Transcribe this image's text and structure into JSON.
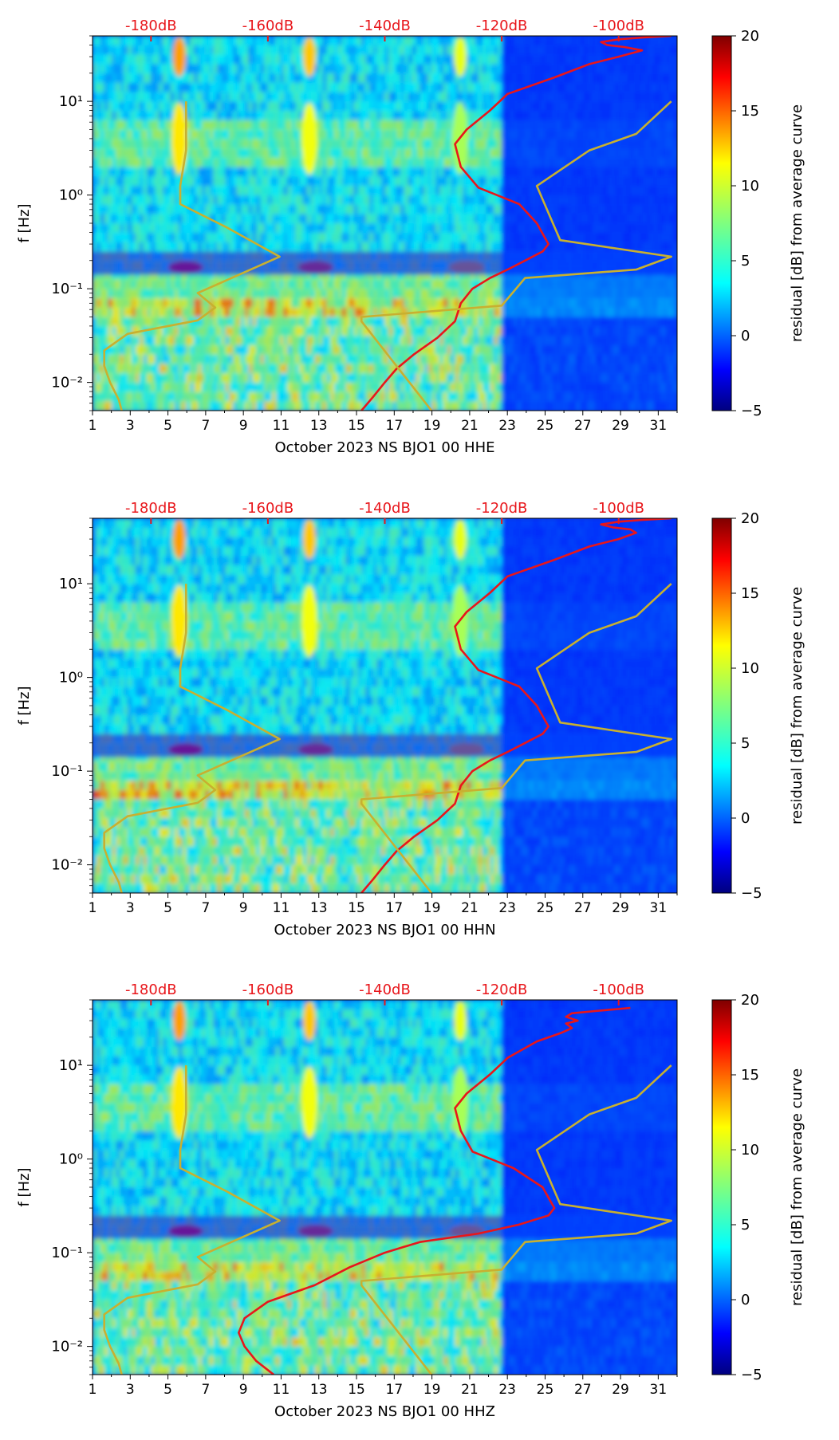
{
  "colors": {
    "spectrogram_base": "#0a2fd6",
    "db_curve": "#e8161b",
    "db_label": "#e8161b",
    "nlnm_nhnm_curves": "#c8b030",
    "axis": "#000000"
  },
  "colormap": "jet",
  "colorbar": {
    "label": "residual [dB] from average curve",
    "range": [
      -5,
      20
    ],
    "ticks": [
      "20",
      "15",
      "10",
      "5",
      "0",
      "−5"
    ]
  },
  "chart_data": [
    {
      "type": "heatmap",
      "title": "",
      "xlabel": "October 2023 NS BJO1 00 HHE",
      "ylabel": "f [Hz]",
      "y_scale": "log",
      "xlim": [
        1,
        32
      ],
      "ylim": [
        0.005,
        50
      ],
      "x_ticks": [
        "1",
        "3",
        "5",
        "7",
        "9",
        "11",
        "13",
        "15",
        "17",
        "19",
        "21",
        "23",
        "25",
        "27",
        "29",
        "31"
      ],
      "y_ticks": [
        "10⁻²",
        "10⁻¹",
        "10⁰",
        "10¹"
      ],
      "top_ticks": [
        "-180dB",
        "-160dB",
        "-140dB",
        "-120dB",
        "-100dB"
      ],
      "top_range_db": [
        -190,
        -90
      ],
      "series": [
        {
          "color": "red",
          "x_db": [
            -144,
            -142,
            -140,
            -138,
            -135,
            -131,
            -128,
            -127,
            -125,
            -122,
            -119,
            -116,
            -113,
            -112,
            -114,
            -117,
            -124,
            -127,
            -128,
            -126,
            -122,
            -119,
            -111,
            -105,
            -100,
            -96,
            -99,
            -102,
            -103,
            -100,
            -96,
            -91
          ],
          "f": [
            0.005,
            0.007,
            0.01,
            0.014,
            0.02,
            0.03,
            0.045,
            0.07,
            0.1,
            0.13,
            0.16,
            0.2,
            0.25,
            0.3,
            0.5,
            0.8,
            1.2,
            2,
            3.5,
            5,
            8,
            12,
            18,
            25,
            30,
            35,
            38,
            40,
            43,
            46,
            48,
            50
          ]
        },
        {
          "color": "olive",
          "x_db": [
            -185,
            -185.5,
            -187,
            -188,
            -188,
            -184,
            -172,
            -169,
            -172,
            -158,
            -167,
            -175,
            -175,
            -174,
            -174
          ],
          "f": [
            0.005,
            0.0065,
            0.01,
            0.015,
            0.022,
            0.033,
            0.046,
            0.063,
            0.09,
            0.22,
            0.45,
            0.8,
            1.25,
            3,
            10
          ]
        },
        {
          "color": "olive",
          "x_db": [
            -132,
            -144,
            -144,
            -120,
            -116,
            -97,
            -91,
            -110,
            -114,
            -105,
            -97,
            -91
          ],
          "f": [
            0.005,
            0.045,
            0.05,
            0.066,
            0.13,
            0.16,
            0.22,
            0.33,
            1.25,
            3,
            4.5,
            10
          ]
        }
      ]
    },
    {
      "type": "heatmap",
      "title": "",
      "xlabel": "October 2023 NS BJO1 00 HHN",
      "ylabel": "f [Hz]",
      "y_scale": "log",
      "xlim": [
        1,
        32
      ],
      "ylim": [
        0.005,
        50
      ],
      "x_ticks": [
        "1",
        "3",
        "5",
        "7",
        "9",
        "11",
        "13",
        "15",
        "17",
        "19",
        "21",
        "23",
        "25",
        "27",
        "29",
        "31"
      ],
      "y_ticks": [
        "10⁻²",
        "10⁻¹",
        "10⁰",
        "10¹"
      ],
      "top_ticks": [
        "-180dB",
        "-160dB",
        "-140dB",
        "-120dB",
        "-100dB"
      ],
      "top_range_db": [
        -190,
        -90
      ],
      "series": [
        {
          "color": "red",
          "x_db": [
            -144,
            -142,
            -140,
            -138,
            -135,
            -131,
            -128,
            -127,
            -125,
            -122,
            -119,
            -116,
            -113,
            -112,
            -114,
            -117,
            -124,
            -127,
            -128,
            -126,
            -122,
            -119,
            -111,
            -105,
            -100,
            -97,
            -98,
            -101,
            -103,
            -100,
            -96,
            -91
          ],
          "f": [
            0.005,
            0.007,
            0.01,
            0.014,
            0.02,
            0.03,
            0.045,
            0.07,
            0.1,
            0.13,
            0.16,
            0.2,
            0.25,
            0.3,
            0.5,
            0.8,
            1.2,
            2,
            3.5,
            5,
            8,
            12,
            18,
            25,
            30,
            35,
            38,
            40,
            43,
            46,
            48,
            50
          ]
        },
        {
          "color": "olive",
          "x_db": [
            -185,
            -185.5,
            -187,
            -188,
            -188,
            -184,
            -172,
            -169,
            -172,
            -158,
            -167,
            -175,
            -175,
            -174,
            -174
          ],
          "f": [
            0.005,
            0.0065,
            0.01,
            0.015,
            0.022,
            0.033,
            0.046,
            0.063,
            0.09,
            0.22,
            0.45,
            0.8,
            1.25,
            3,
            10
          ]
        },
        {
          "color": "olive",
          "x_db": [
            -132,
            -144,
            -144,
            -120,
            -116,
            -97,
            -91,
            -110,
            -114,
            -105,
            -97,
            -91
          ],
          "f": [
            0.005,
            0.045,
            0.05,
            0.066,
            0.13,
            0.16,
            0.22,
            0.33,
            1.25,
            3,
            4.5,
            10
          ]
        }
      ]
    },
    {
      "type": "heatmap",
      "title": "",
      "xlabel": "October 2023 NS BJO1 00 HHZ",
      "ylabel": "f [Hz]",
      "y_scale": "log",
      "xlim": [
        1,
        32
      ],
      "ylim": [
        0.005,
        50
      ],
      "x_ticks": [
        "1",
        "3",
        "5",
        "7",
        "9",
        "11",
        "13",
        "15",
        "17",
        "19",
        "21",
        "23",
        "25",
        "27",
        "29",
        "31"
      ],
      "y_ticks": [
        "10⁻²",
        "10⁻¹",
        "10⁰",
        "10¹"
      ],
      "top_ticks": [
        "-180dB",
        "-160dB",
        "-140dB",
        "-120dB",
        "-100dB"
      ],
      "top_range_db": [
        -190,
        -90
      ],
      "series": [
        {
          "color": "red",
          "x_db": [
            -159,
            -162,
            -164,
            -165,
            -164,
            -160,
            -152,
            -146,
            -140,
            -134,
            -124,
            -117,
            -112,
            -111,
            -113,
            -118,
            -125,
            -127,
            -128,
            -126,
            -122,
            -119,
            -114,
            -110,
            -108,
            -109,
            -107,
            -109,
            -108,
            -104,
            -100,
            -98
          ],
          "f": [
            0.005,
            0.007,
            0.01,
            0.014,
            0.02,
            0.03,
            0.045,
            0.07,
            0.1,
            0.13,
            0.16,
            0.2,
            0.25,
            0.3,
            0.5,
            0.8,
            1.2,
            2,
            3.5,
            5,
            8,
            12,
            18,
            22,
            25,
            28,
            30,
            33,
            36,
            38,
            40,
            41
          ]
        },
        {
          "color": "olive",
          "x_db": [
            -185,
            -185.5,
            -187,
            -188,
            -188,
            -184,
            -172,
            -169,
            -172,
            -158,
            -167,
            -175,
            -175,
            -174,
            -174
          ],
          "f": [
            0.005,
            0.0065,
            0.01,
            0.015,
            0.022,
            0.033,
            0.046,
            0.063,
            0.09,
            0.22,
            0.45,
            0.8,
            1.25,
            3,
            10
          ]
        },
        {
          "color": "olive",
          "x_db": [
            -132,
            -144,
            -144,
            -120,
            -116,
            -97,
            -91,
            -110,
            -114,
            -105,
            -97,
            -91
          ],
          "f": [
            0.005,
            0.045,
            0.05,
            0.066,
            0.13,
            0.16,
            0.22,
            0.33,
            1.25,
            3,
            4.5,
            10
          ]
        }
      ]
    }
  ]
}
